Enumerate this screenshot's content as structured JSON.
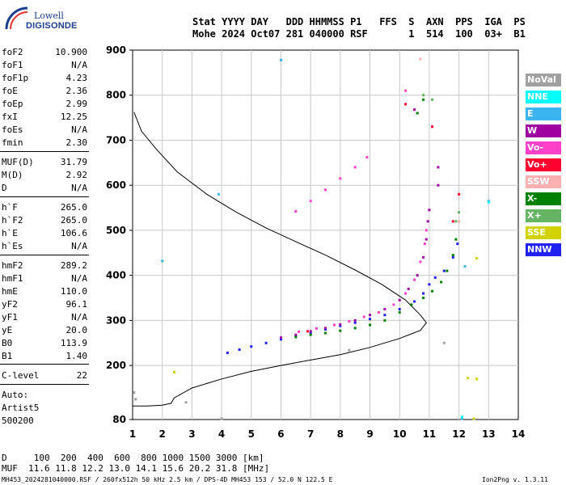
{
  "logo": {
    "line1": "Lowell",
    "line2": "DIGISONDE"
  },
  "header": {
    "line1": "Stat YYYY DAY   DDD HHMMSS P1   FFS  S  AXN  PPS  IGA  PS",
    "line2": "Mohe 2024 Oct07 281 040000 RSF       1  514  100  03+  B1"
  },
  "params": [
    {
      "name": "foF2",
      "value": "10.900"
    },
    {
      "name": "foF1",
      "value": "N/A"
    },
    {
      "name": "foF1p",
      "value": "4.23"
    },
    {
      "name": "foE",
      "value": "2.36"
    },
    {
      "name": "foEp",
      "value": "2.99"
    },
    {
      "name": "fxI",
      "value": "12.25"
    },
    {
      "name": "foEs",
      "value": "N/A"
    },
    {
      "name": "fmin",
      "value": "2.30"
    },
    {
      "name": "MUF(D)",
      "value": "31.79"
    },
    {
      "name": "M(D)",
      "value": "2.92"
    },
    {
      "name": "D",
      "value": "N/A"
    },
    {
      "name": "h`F",
      "value": "265.0"
    },
    {
      "name": "h`F2",
      "value": "265.0"
    },
    {
      "name": "h`E",
      "value": "106.6"
    },
    {
      "name": "h`Es",
      "value": "N/A"
    },
    {
      "name": "hmF2",
      "value": "289.2"
    },
    {
      "name": "hmF1",
      "value": "N/A"
    },
    {
      "name": "hmE",
      "value": "110.0"
    },
    {
      "name": "yF2",
      "value": "96.1"
    },
    {
      "name": "yF1",
      "value": "N/A"
    },
    {
      "name": "yE",
      "value": "20.0"
    },
    {
      "name": "B0",
      "value": "113.9"
    },
    {
      "name": "B1",
      "value": "1.40"
    },
    {
      "name": "C-level",
      "value": "22"
    }
  ],
  "scaling": {
    "mode": "Auto:",
    "system": "Artist5",
    "code": "500200"
  },
  "legend": [
    {
      "label": "NoVal",
      "color": "#a0a0a0"
    },
    {
      "label": "NNE",
      "color": "#00ffff"
    },
    {
      "label": "E",
      "color": "#3cb4f0"
    },
    {
      "label": "W",
      "color": "#a000a0"
    },
    {
      "label": "Vo-",
      "color": "#ff40c8"
    },
    {
      "label": "Vo+",
      "color": "#ff0030"
    },
    {
      "label": "SSW",
      "color": "#ffb0b0"
    },
    {
      "label": "X-",
      "color": "#008000"
    },
    {
      "label": "X+",
      "color": "#64b464"
    },
    {
      "label": "SSE",
      "color": "#d2d200"
    },
    {
      "label": "NNW",
      "color": "#2020f0"
    }
  ],
  "footer": {
    "d_row": "D     100  200  400  600  800 1000 1500 3000 [km]",
    "muf_row": "MUF  11.6 11.8 12.2 13.0 14.1 15.6 20.2 31.8 [MHz]",
    "file_info": "MH453_2024281040000.RSF / 260fx512h 50 kHz 2.5 km / DPS-4D MH453 153 / 52.0 N 122.5 E",
    "version": "Ion2Png v. 1.3.11"
  },
  "chart_data": {
    "type": "scatter",
    "xlim": [
      1,
      14
    ],
    "ylim": [
      80,
      900
    ],
    "x_ticks": [
      1,
      2,
      3,
      4,
      5,
      6,
      7,
      8,
      9,
      10,
      11,
      12,
      13,
      14
    ],
    "y_ticks": [
      80,
      200,
      300,
      400,
      500,
      600,
      700,
      800,
      900
    ],
    "grid": true,
    "legend_position": "right",
    "profile_line": {
      "color": "#000000",
      "points": [
        [
          1.05,
          762
        ],
        [
          1.3,
          720
        ],
        [
          1.8,
          680
        ],
        [
          2.5,
          630
        ],
        [
          3.5,
          580
        ],
        [
          4.5,
          540
        ],
        [
          5.5,
          505
        ],
        [
          6.5,
          475
        ],
        [
          7.5,
          445
        ],
        [
          8.5,
          412
        ],
        [
          9.4,
          380
        ],
        [
          10.2,
          345
        ],
        [
          10.7,
          312
        ],
        [
          10.9,
          295
        ],
        [
          10.7,
          278
        ],
        [
          10.0,
          260
        ],
        [
          9.0,
          240
        ],
        [
          8.0,
          224
        ],
        [
          7.0,
          212
        ],
        [
          6.0,
          200
        ],
        [
          5.0,
          187
        ],
        [
          4.0,
          170
        ],
        [
          3.0,
          150
        ],
        [
          2.4,
          128
        ],
        [
          2.3,
          116
        ],
        [
          2.0,
          112
        ],
        [
          1.5,
          110
        ],
        [
          1.0,
          110
        ]
      ]
    },
    "series": [
      {
        "name": "NNW",
        "color": "#2020f0",
        "points": [
          [
            4.2,
            228
          ],
          [
            4.6,
            235
          ],
          [
            5.0,
            242
          ],
          [
            5.5,
            250
          ],
          [
            6.0,
            258
          ],
          [
            6.5,
            265
          ],
          [
            7.0,
            272
          ],
          [
            7.5,
            280
          ],
          [
            8.0,
            288
          ],
          [
            8.5,
            295
          ],
          [
            9.0,
            303
          ],
          [
            9.5,
            312
          ],
          [
            10.0,
            325
          ],
          [
            10.5,
            342
          ],
          [
            10.8,
            360
          ],
          [
            11.0,
            380
          ],
          [
            11.2,
            395
          ],
          [
            11.5,
            410
          ],
          [
            11.8,
            440
          ],
          [
            11.95,
            470
          ]
        ]
      },
      {
        "name": "W",
        "color": "#a000a0",
        "points": [
          [
            6.0,
            262
          ],
          [
            6.5,
            268
          ],
          [
            7.0,
            276
          ],
          [
            7.5,
            283
          ],
          [
            8.0,
            291
          ],
          [
            8.5,
            300
          ],
          [
            9.0,
            312
          ],
          [
            9.5,
            325
          ],
          [
            10.0,
            345
          ],
          [
            10.3,
            370
          ],
          [
            10.6,
            400
          ],
          [
            10.8,
            440
          ],
          [
            10.9,
            480
          ],
          [
            10.95,
            520
          ],
          [
            11.0,
            545
          ],
          [
            11.3,
            600
          ],
          [
            11.3,
            640
          ],
          [
            10.6,
            760
          ],
          [
            10.5,
            768
          ]
        ]
      },
      {
        "name": "Vo-",
        "color": "#ff40c8",
        "points": [
          [
            6.6,
            275
          ],
          [
            7.2,
            282
          ],
          [
            7.8,
            290
          ],
          [
            8.3,
            298
          ],
          [
            8.8,
            308
          ],
          [
            9.3,
            318
          ],
          [
            9.8,
            335
          ],
          [
            10.2,
            360
          ],
          [
            10.5,
            390
          ],
          [
            10.7,
            430
          ],
          [
            10.85,
            470
          ],
          [
            10.9,
            500
          ],
          [
            6.5,
            542
          ],
          [
            7.0,
            565
          ],
          [
            7.5,
            590
          ],
          [
            8.0,
            615
          ],
          [
            8.5,
            640
          ],
          [
            8.9,
            662
          ],
          [
            10.2,
            810
          ]
        ]
      },
      {
        "name": "X-",
        "color": "#008000",
        "points": [
          [
            6.5,
            263
          ],
          [
            7.0,
            268
          ],
          [
            7.5,
            272
          ],
          [
            8.0,
            277
          ],
          [
            8.5,
            283
          ],
          [
            9.0,
            290
          ],
          [
            9.5,
            300
          ],
          [
            10.0,
            318
          ],
          [
            10.4,
            335
          ],
          [
            10.8,
            350
          ],
          [
            11.1,
            365
          ],
          [
            11.4,
            385
          ],
          [
            11.6,
            410
          ],
          [
            11.8,
            445
          ],
          [
            11.9,
            480
          ],
          [
            10.6,
            760
          ],
          [
            10.8,
            790
          ]
        ]
      },
      {
        "name": "Vo+",
        "color": "#ff0030",
        "points": [
          [
            10.2,
            780
          ],
          [
            11.1,
            730
          ],
          [
            12.0,
            580
          ],
          [
            6.9,
            276
          ],
          [
            11.8,
            520
          ]
        ]
      },
      {
        "name": "X+",
        "color": "#64b464",
        "points": [
          [
            11.9,
            520
          ],
          [
            12.0,
            540
          ],
          [
            10.8,
            800
          ],
          [
            11.1,
            790
          ]
        ]
      },
      {
        "name": "E",
        "color": "#3cb4f0",
        "points": [
          [
            2.0,
            432
          ],
          [
            3.9,
            580
          ],
          [
            6.0,
            878
          ],
          [
            12.2,
            420
          ],
          [
            13.0,
            565
          ],
          [
            12.1,
            82
          ]
        ]
      },
      {
        "name": "SSE",
        "color": "#d2d200",
        "points": [
          [
            2.4,
            185
          ],
          [
            12.3,
            172
          ],
          [
            12.6,
            170
          ],
          [
            12.6,
            438
          ],
          [
            12.5,
            82
          ]
        ]
      },
      {
        "name": "SSW",
        "color": "#ffb0b0",
        "points": [
          [
            10.7,
            880
          ],
          [
            12.0,
            520
          ]
        ]
      },
      {
        "name": "NNE",
        "color": "#00ffff",
        "points": [
          [
            12.1,
            86
          ],
          [
            13.0,
            562
          ]
        ]
      },
      {
        "name": "NoVal",
        "color": "#a0a0a0",
        "points": [
          [
            1.05,
            140
          ],
          [
            1.1,
            125
          ],
          [
            2.8,
            118
          ],
          [
            4.0,
            82
          ],
          [
            8.3,
            234
          ],
          [
            11.5,
            250
          ]
        ]
      }
    ]
  }
}
